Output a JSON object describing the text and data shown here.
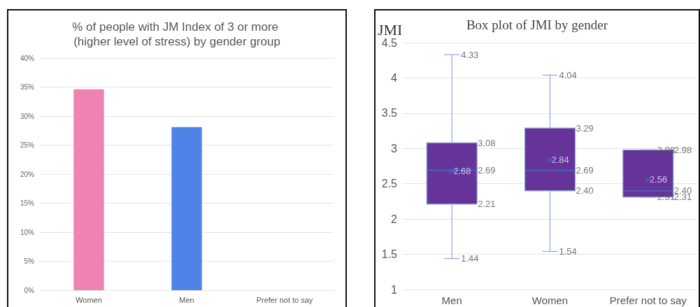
{
  "chart_data": [
    {
      "type": "bar",
      "title": "% of people with JM Index of 3 or more (higher level of stress) by gender group",
      "categories": [
        "Women",
        "Men",
        "Prefer not to say"
      ],
      "values": [
        34.6,
        28.1,
        0
      ],
      "colors": [
        "#ee82b2",
        "#5083e8",
        "#5083e8"
      ],
      "ylim": [
        0,
        40
      ],
      "yticks": [
        {
          "value": 0,
          "label": "0%"
        },
        {
          "value": 5,
          "label": "5%"
        },
        {
          "value": 10,
          "label": "10%"
        },
        {
          "value": 15,
          "label": "15%"
        },
        {
          "value": 20,
          "label": "20%"
        },
        {
          "value": 25,
          "label": "25%"
        },
        {
          "value": 30,
          "label": "30%"
        },
        {
          "value": 35,
          "label": "35%"
        },
        {
          "value": 40,
          "label": "40%"
        }
      ],
      "grid": "y"
    },
    {
      "type": "box",
      "title": "Box plot of JMI by gender",
      "ylabel": "JMI",
      "categories": [
        "Men",
        "Women",
        "Prefer not to say"
      ],
      "color": "#663399",
      "boxes": [
        {
          "low": 1.44,
          "q1": 2.21,
          "median": 2.69,
          "q3": 3.08,
          "high": 4.33,
          "mean": 2.68
        },
        {
          "low": 1.54,
          "q1": 2.4,
          "median": 2.69,
          "q3": 3.29,
          "high": 4.04,
          "mean": 2.84
        },
        {
          "low": 2.31,
          "q1": 2.31,
          "median": 2.4,
          "q3": 2.98,
          "high": 2.98,
          "mean": 2.56
        }
      ],
      "ylim": [
        1,
        4.5
      ],
      "yticks": [
        1,
        1.5,
        2,
        2.5,
        3,
        3.5,
        4,
        4.5
      ],
      "grid": "y",
      "annotations": [
        "2.68",
        "2.84",
        "2.56",
        {
          "text": "4.33",
          "x": "Men",
          "y": 4.33
        },
        {
          "text": "1.44",
          "x": "Men",
          "y": 1.44
        },
        {
          "text": "3.08",
          "x": "Men",
          "y": 3.08
        },
        {
          "text": "2.69",
          "x": "Men",
          "y": 2.69
        },
        {
          "text": "2.21",
          "x": "Men",
          "y": 2.21
        },
        {
          "text": "4.04",
          "x": "Women",
          "y": 4.04
        },
        {
          "text": "1.54",
          "x": "Women",
          "y": 1.54
        },
        {
          "text": "3.29",
          "x": "Women",
          "y": 3.29
        },
        {
          "text": "2.69",
          "x": "Women",
          "y": 2.69
        },
        {
          "text": "2.40",
          "x": "Women",
          "y": 2.4
        },
        {
          "text": "2.98",
          "x": "Prefer not to say",
          "y": 2.98
        },
        {
          "text": "2.31",
          "x": "Prefer not to say",
          "y": 2.31
        },
        {
          "text": "2.98",
          "x": "Prefer not to say",
          "y": 2.98
        },
        {
          "text": "2.40",
          "x": "Prefer not to say",
          "y": 2.4
        },
        {
          "text": "2.31",
          "x": "Prefer not to say",
          "y": 2.31
        }
      ]
    }
  ]
}
